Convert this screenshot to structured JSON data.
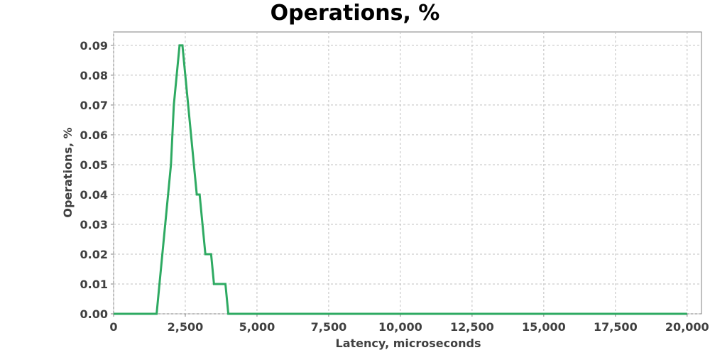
{
  "chart_data": {
    "type": "line",
    "title": "Operations, %",
    "xlabel": "Latency, microseconds",
    "ylabel": "Operations, %",
    "xlim": [
      0,
      20500
    ],
    "ylim": [
      0,
      0.0945
    ],
    "x_ticks": [
      0,
      2500,
      5000,
      7500,
      10000,
      12500,
      15000,
      17500,
      20000
    ],
    "x_tick_labels": [
      "0",
      "2,500",
      "5,000",
      "7,500",
      "10,000",
      "12,500",
      "15,000",
      "17,500",
      "20,000"
    ],
    "y_ticks": [
      0,
      0.01,
      0.02,
      0.03,
      0.04,
      0.05,
      0.06,
      0.07,
      0.08,
      0.09
    ],
    "y_tick_labels": [
      "0.00",
      "0.01",
      "0.02",
      "0.03",
      "0.04",
      "0.05",
      "0.06",
      "0.07",
      "0.08",
      "0.09"
    ],
    "grid": true,
    "series": [
      {
        "color": "#2eaa62",
        "points": [
          [
            0,
            0
          ],
          [
            1500,
            0
          ],
          [
            1600,
            0.01
          ],
          [
            2000,
            0.05
          ],
          [
            2100,
            0.07
          ],
          [
            2300,
            0.09
          ],
          [
            2400,
            0.09
          ],
          [
            2900,
            0.04
          ],
          [
            3000,
            0.04
          ],
          [
            3100,
            0.03
          ],
          [
            3200,
            0.02
          ],
          [
            3400,
            0.02
          ],
          [
            3500,
            0.01
          ],
          [
            3900,
            0.01
          ],
          [
            4000,
            0
          ],
          [
            20000,
            0
          ]
        ]
      }
    ]
  }
}
